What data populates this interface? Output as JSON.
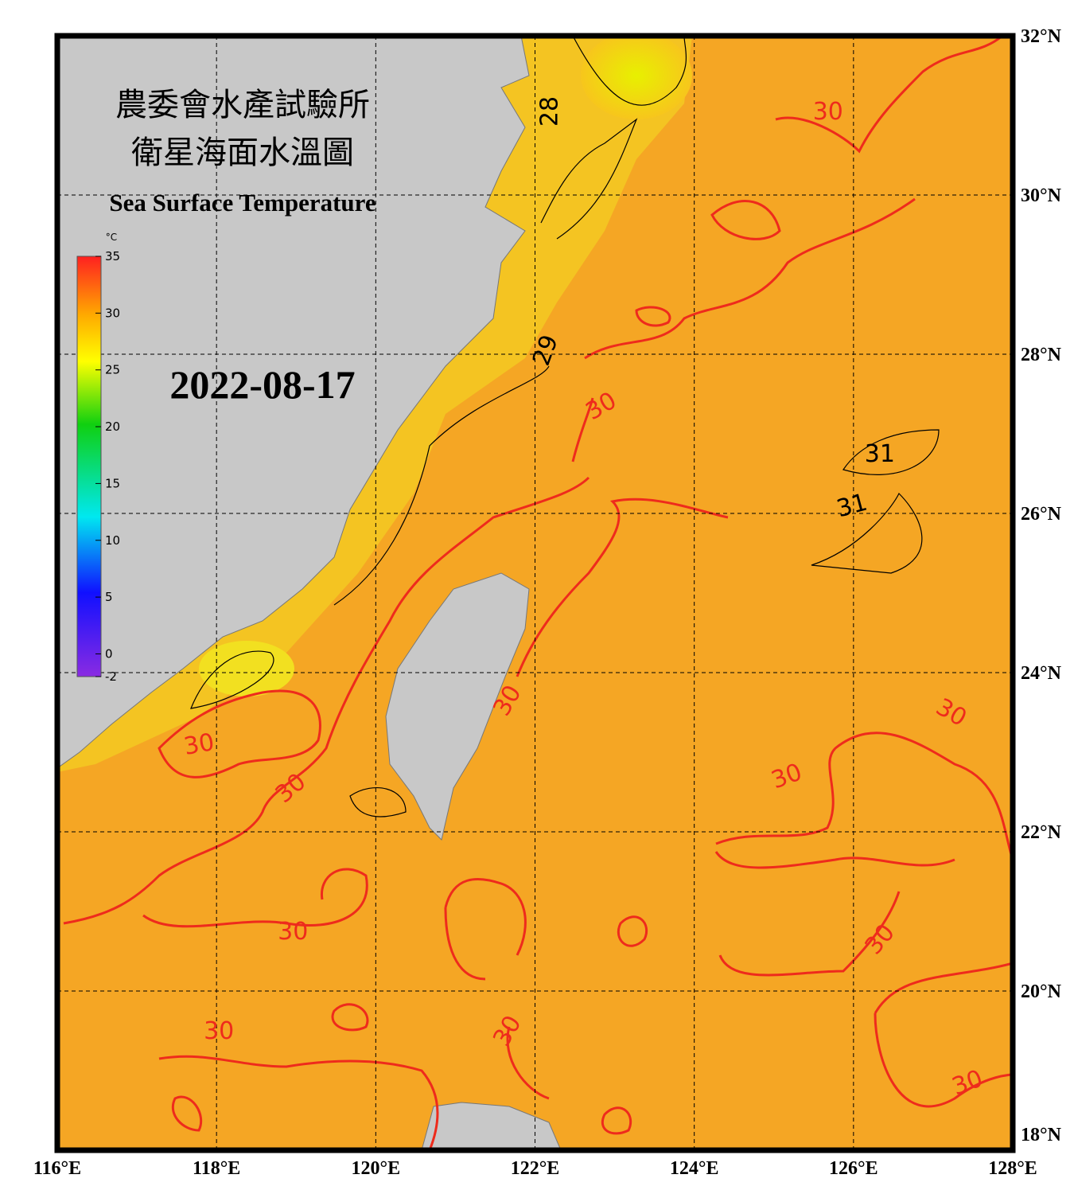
{
  "map": {
    "title_zh_1": "農委會水產試驗所",
    "title_zh_2": "衛星海面水溫圖",
    "title_en": "Sea Surface Temperature",
    "date": "2022-08-17",
    "lonlim": [
      116,
      128
    ],
    "latlim": [
      18,
      32
    ],
    "lonticks": [
      {
        "value": 116,
        "label": "116°E"
      },
      {
        "value": 118,
        "label": "118°E"
      },
      {
        "value": 120,
        "label": "120°E"
      },
      {
        "value": 122,
        "label": "122°E"
      },
      {
        "value": 124,
        "label": "124°E"
      },
      {
        "value": 126,
        "label": "126°E"
      },
      {
        "value": 128,
        "label": "128°E"
      }
    ],
    "latticks": [
      {
        "value": 32,
        "label": "32°N"
      },
      {
        "value": 30,
        "label": "30°N"
      },
      {
        "value": 28,
        "label": "28°N"
      },
      {
        "value": 26,
        "label": "26°N"
      },
      {
        "value": 24,
        "label": "24°N"
      },
      {
        "value": 22,
        "label": "22°N"
      },
      {
        "value": 20,
        "label": "20°N"
      },
      {
        "value": 18,
        "label": "18°N"
      }
    ],
    "colorbar": {
      "unit": "°C",
      "lim": [
        -2,
        35
      ],
      "ticks": [
        35,
        30,
        25,
        20,
        15,
        10,
        5,
        0,
        -2
      ]
    },
    "contour_labels": [
      {
        "text": "28",
        "lon": 122.18,
        "lat": 31.05,
        "color": "#000000"
      },
      {
        "text": "29",
        "lon": 122.13,
        "lat": 28.05,
        "color": "#000000"
      },
      {
        "text": "30",
        "lon": 122.83,
        "lat": 27.35,
        "color": "#ee2b1c"
      },
      {
        "text": "30",
        "lon": 125.68,
        "lat": 31.05,
        "color": "#ee2b1c"
      },
      {
        "text": "30",
        "lon": 117.78,
        "lat": 23.1,
        "color": "#ee2b1c"
      },
      {
        "text": "30",
        "lon": 118.93,
        "lat": 22.55,
        "color": "#ee2b1c"
      },
      {
        "text": "30",
        "lon": 118.96,
        "lat": 20.75,
        "color": "#ee2b1c"
      },
      {
        "text": "30",
        "lon": 118.03,
        "lat": 19.5,
        "color": "#ee2b1c"
      },
      {
        "text": "30",
        "lon": 121.65,
        "lat": 23.65,
        "color": "#ee2b1c"
      },
      {
        "text": "30",
        "lon": 121.65,
        "lat": 19.5,
        "color": "#ee2b1c"
      },
      {
        "text": "30",
        "lon": 125.16,
        "lat": 22.7,
        "color": "#ee2b1c"
      },
      {
        "text": "30",
        "lon": 127.23,
        "lat": 23.5,
        "color": "#ee2b1c"
      },
      {
        "text": "30",
        "lon": 126.33,
        "lat": 20.65,
        "color": "#ee2b1c"
      },
      {
        "text": "30",
        "lon": 127.43,
        "lat": 18.85,
        "color": "#ee2b1c"
      },
      {
        "text": "31",
        "lon": 126.33,
        "lat": 26.75,
        "color": "#000000"
      },
      {
        "text": "31",
        "lon": 125.98,
        "lat": 26.1,
        "color": "#000000"
      }
    ]
  }
}
